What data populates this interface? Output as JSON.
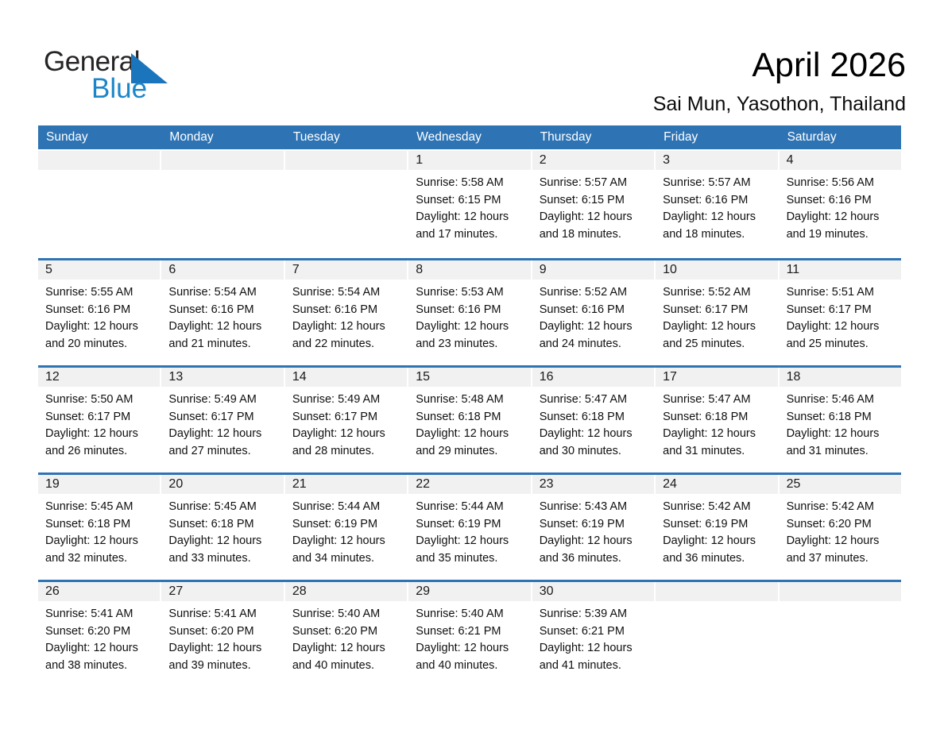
{
  "logo": {
    "word_general": "General",
    "word_blue": "Blue"
  },
  "header": {
    "title": "April 2026",
    "location": "Sai Mun, Yasothon, Thailand"
  },
  "colors": {
    "header_blue": "#2E74B5",
    "band_gray": "#F1F1F1",
    "logo_triangle_blue": "#1B75BC",
    "logo_blue_text": "#1C86C8"
  },
  "calendar": {
    "day_names": [
      "Sunday",
      "Monday",
      "Tuesday",
      "Wednesday",
      "Thursday",
      "Friday",
      "Saturday"
    ],
    "weeks": [
      [
        {
          "day": ""
        },
        {
          "day": ""
        },
        {
          "day": ""
        },
        {
          "day": "1",
          "sunrise": "Sunrise: 5:58 AM",
          "sunset": "Sunset: 6:15 PM",
          "daylight": "Daylight: 12 hours",
          "daylight2": "and 17 minutes."
        },
        {
          "day": "2",
          "sunrise": "Sunrise: 5:57 AM",
          "sunset": "Sunset: 6:15 PM",
          "daylight": "Daylight: 12 hours",
          "daylight2": "and 18 minutes."
        },
        {
          "day": "3",
          "sunrise": "Sunrise: 5:57 AM",
          "sunset": "Sunset: 6:16 PM",
          "daylight": "Daylight: 12 hours",
          "daylight2": "and 18 minutes."
        },
        {
          "day": "4",
          "sunrise": "Sunrise: 5:56 AM",
          "sunset": "Sunset: 6:16 PM",
          "daylight": "Daylight: 12 hours",
          "daylight2": "and 19 minutes."
        }
      ],
      [
        {
          "day": "5",
          "sunrise": "Sunrise: 5:55 AM",
          "sunset": "Sunset: 6:16 PM",
          "daylight": "Daylight: 12 hours",
          "daylight2": "and 20 minutes."
        },
        {
          "day": "6",
          "sunrise": "Sunrise: 5:54 AM",
          "sunset": "Sunset: 6:16 PM",
          "daylight": "Daylight: 12 hours",
          "daylight2": "and 21 minutes."
        },
        {
          "day": "7",
          "sunrise": "Sunrise: 5:54 AM",
          "sunset": "Sunset: 6:16 PM",
          "daylight": "Daylight: 12 hours",
          "daylight2": "and 22 minutes."
        },
        {
          "day": "8",
          "sunrise": "Sunrise: 5:53 AM",
          "sunset": "Sunset: 6:16 PM",
          "daylight": "Daylight: 12 hours",
          "daylight2": "and 23 minutes."
        },
        {
          "day": "9",
          "sunrise": "Sunrise: 5:52 AM",
          "sunset": "Sunset: 6:16 PM",
          "daylight": "Daylight: 12 hours",
          "daylight2": "and 24 minutes."
        },
        {
          "day": "10",
          "sunrise": "Sunrise: 5:52 AM",
          "sunset": "Sunset: 6:17 PM",
          "daylight": "Daylight: 12 hours",
          "daylight2": "and 25 minutes."
        },
        {
          "day": "11",
          "sunrise": "Sunrise: 5:51 AM",
          "sunset": "Sunset: 6:17 PM",
          "daylight": "Daylight: 12 hours",
          "daylight2": "and 25 minutes."
        }
      ],
      [
        {
          "day": "12",
          "sunrise": "Sunrise: 5:50 AM",
          "sunset": "Sunset: 6:17 PM",
          "daylight": "Daylight: 12 hours",
          "daylight2": "and 26 minutes."
        },
        {
          "day": "13",
          "sunrise": "Sunrise: 5:49 AM",
          "sunset": "Sunset: 6:17 PM",
          "daylight": "Daylight: 12 hours",
          "daylight2": "and 27 minutes."
        },
        {
          "day": "14",
          "sunrise": "Sunrise: 5:49 AM",
          "sunset": "Sunset: 6:17 PM",
          "daylight": "Daylight: 12 hours",
          "daylight2": "and 28 minutes."
        },
        {
          "day": "15",
          "sunrise": "Sunrise: 5:48 AM",
          "sunset": "Sunset: 6:18 PM",
          "daylight": "Daylight: 12 hours",
          "daylight2": "and 29 minutes."
        },
        {
          "day": "16",
          "sunrise": "Sunrise: 5:47 AM",
          "sunset": "Sunset: 6:18 PM",
          "daylight": "Daylight: 12 hours",
          "daylight2": "and 30 minutes."
        },
        {
          "day": "17",
          "sunrise": "Sunrise: 5:47 AM",
          "sunset": "Sunset: 6:18 PM",
          "daylight": "Daylight: 12 hours",
          "daylight2": "and 31 minutes."
        },
        {
          "day": "18",
          "sunrise": "Sunrise: 5:46 AM",
          "sunset": "Sunset: 6:18 PM",
          "daylight": "Daylight: 12 hours",
          "daylight2": "and 31 minutes."
        }
      ],
      [
        {
          "day": "19",
          "sunrise": "Sunrise: 5:45 AM",
          "sunset": "Sunset: 6:18 PM",
          "daylight": "Daylight: 12 hours",
          "daylight2": "and 32 minutes."
        },
        {
          "day": "20",
          "sunrise": "Sunrise: 5:45 AM",
          "sunset": "Sunset: 6:18 PM",
          "daylight": "Daylight: 12 hours",
          "daylight2": "and 33 minutes."
        },
        {
          "day": "21",
          "sunrise": "Sunrise: 5:44 AM",
          "sunset": "Sunset: 6:19 PM",
          "daylight": "Daylight: 12 hours",
          "daylight2": "and 34 minutes."
        },
        {
          "day": "22",
          "sunrise": "Sunrise: 5:44 AM",
          "sunset": "Sunset: 6:19 PM",
          "daylight": "Daylight: 12 hours",
          "daylight2": "and 35 minutes."
        },
        {
          "day": "23",
          "sunrise": "Sunrise: 5:43 AM",
          "sunset": "Sunset: 6:19 PM",
          "daylight": "Daylight: 12 hours",
          "daylight2": "and 36 minutes."
        },
        {
          "day": "24",
          "sunrise": "Sunrise: 5:42 AM",
          "sunset": "Sunset: 6:19 PM",
          "daylight": "Daylight: 12 hours",
          "daylight2": "and 36 minutes."
        },
        {
          "day": "25",
          "sunrise": "Sunrise: 5:42 AM",
          "sunset": "Sunset: 6:20 PM",
          "daylight": "Daylight: 12 hours",
          "daylight2": "and 37 minutes."
        }
      ],
      [
        {
          "day": "26",
          "sunrise": "Sunrise: 5:41 AM",
          "sunset": "Sunset: 6:20 PM",
          "daylight": "Daylight: 12 hours",
          "daylight2": "and 38 minutes."
        },
        {
          "day": "27",
          "sunrise": "Sunrise: 5:41 AM",
          "sunset": "Sunset: 6:20 PM",
          "daylight": "Daylight: 12 hours",
          "daylight2": "and 39 minutes."
        },
        {
          "day": "28",
          "sunrise": "Sunrise: 5:40 AM",
          "sunset": "Sunset: 6:20 PM",
          "daylight": "Daylight: 12 hours",
          "daylight2": "and 40 minutes."
        },
        {
          "day": "29",
          "sunrise": "Sunrise: 5:40 AM",
          "sunset": "Sunset: 6:21 PM",
          "daylight": "Daylight: 12 hours",
          "daylight2": "and 40 minutes."
        },
        {
          "day": "30",
          "sunrise": "Sunrise: 5:39 AM",
          "sunset": "Sunset: 6:21 PM",
          "daylight": "Daylight: 12 hours",
          "daylight2": "and 41 minutes."
        },
        {
          "day": ""
        },
        {
          "day": ""
        }
      ]
    ]
  }
}
